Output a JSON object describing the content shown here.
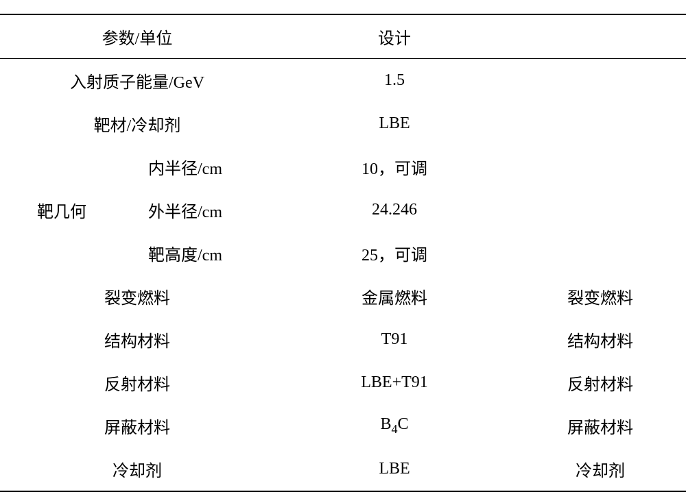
{
  "header": {
    "col1": "参数/单位",
    "col2": "设计"
  },
  "rows": [
    {
      "param": "入射质子能量/GeV",
      "design": "1.5",
      "note": ""
    },
    {
      "param": "靶材/冷却剂",
      "design": "LBE",
      "note": ""
    }
  ],
  "geometry": {
    "groupLabel": "靶几何",
    "items": [
      {
        "label": "内半径/cm",
        "value": "10，可调"
      },
      {
        "label": "外半径/cm",
        "value": "24.246"
      },
      {
        "label": "靶高度/cm",
        "value": "25，可调"
      }
    ]
  },
  "bottomRows": [
    {
      "param": "裂变燃料",
      "design": "金属燃料",
      "note": "裂变燃料"
    },
    {
      "param": "结构材料",
      "design": "T91",
      "note": "结构材料"
    },
    {
      "param": "反射材料",
      "design": "LBE+T91",
      "note": "反射材料"
    },
    {
      "param": "屏蔽材料",
      "design_html": "B4C",
      "note": "屏蔽材料"
    },
    {
      "param": "冷却剂",
      "design": "LBE",
      "note": "冷却剂"
    }
  ],
  "styling": {
    "background_color": "#ffffff",
    "text_color": "#000000",
    "border_color": "#000000",
    "header_border_top_width": 2,
    "header_border_bottom_width": 1,
    "table_border_bottom_width": 2,
    "font_family": "SimSun",
    "header_fontsize": 24,
    "cell_fontsize": 24,
    "row_padding": 14
  }
}
